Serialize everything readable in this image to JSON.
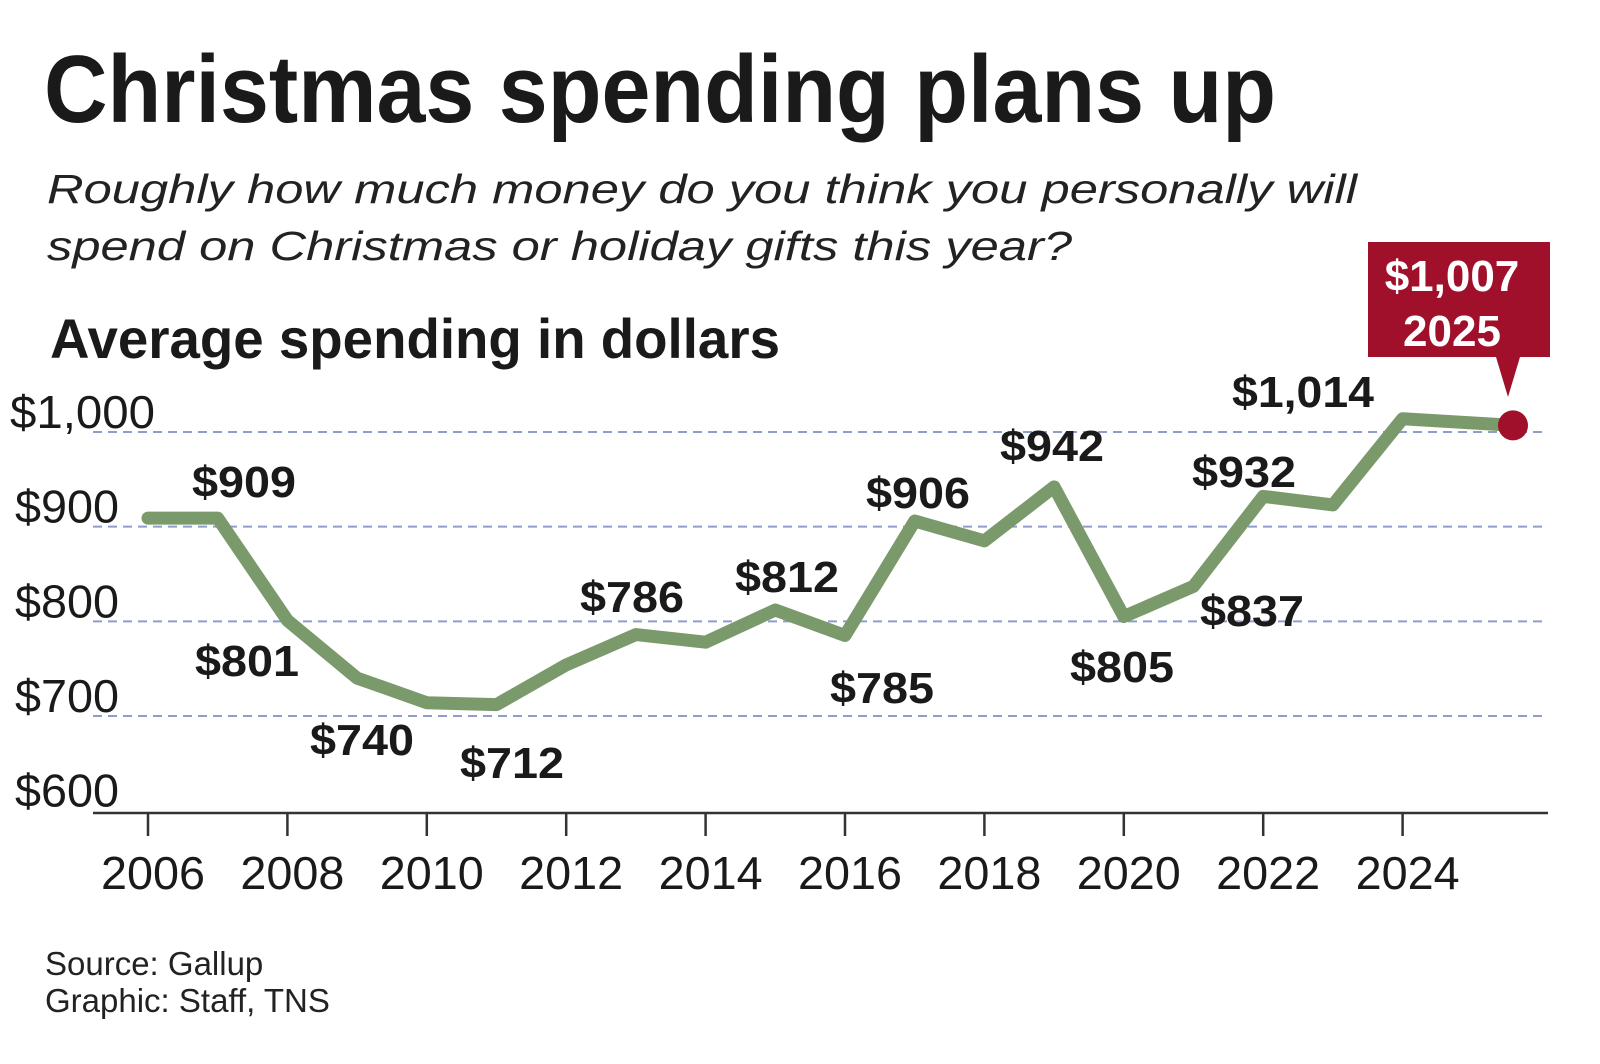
{
  "title": "Christmas spending plans up",
  "subtitle_line1": "Roughly how much money do you think you personally will",
  "subtitle_line2": "spend on Christmas or holiday gifts this year?",
  "source": "Source: Gallup",
  "credit": "Graphic: Staff, TNS",
  "colors": {
    "line": "#7b9a6c",
    "highlight": "#a0102a",
    "grid": "#8f9ccc"
  },
  "chart_data": {
    "type": "line",
    "title": "Average spending in dollars",
    "ylim": [
      600,
      1000
    ],
    "grid": true,
    "y_ticks": [
      {
        "value": 1000,
        "label": "$1,000"
      },
      {
        "value": 900,
        "label": "$900"
      },
      {
        "value": 800,
        "label": "$800"
      },
      {
        "value": 700,
        "label": "$700"
      },
      {
        "value": 600,
        "label": "$600"
      }
    ],
    "x_ticks": [
      2006,
      2008,
      2010,
      2012,
      2014,
      2016,
      2018,
      2020,
      2022,
      2024
    ],
    "x": [
      2006,
      2007,
      2008,
      2009,
      2010,
      2011,
      2012,
      2013,
      2014,
      2015,
      2016,
      2017,
      2018,
      2019,
      2020,
      2021,
      2022,
      2023,
      2024,
      2025
    ],
    "values": [
      909,
      909,
      801,
      740,
      714,
      712,
      754,
      786,
      778,
      812,
      785,
      906,
      885,
      942,
      805,
      837,
      932,
      923,
      1014,
      1007
    ],
    "labels": [
      {
        "year": 2007,
        "text": "$909"
      },
      {
        "year": 2008,
        "text": "$801"
      },
      {
        "year": 2009,
        "text": "$740"
      },
      {
        "year": 2011,
        "text": "$712"
      },
      {
        "year": 2013,
        "text": "$786"
      },
      {
        "year": 2015,
        "text": "$812"
      },
      {
        "year": 2016,
        "text": "$785"
      },
      {
        "year": 2017,
        "text": "$906"
      },
      {
        "year": 2019,
        "text": "$942"
      },
      {
        "year": 2020,
        "text": "$805"
      },
      {
        "year": 2021,
        "text": "$837"
      },
      {
        "year": 2022,
        "text": "$932"
      },
      {
        "year": 2024,
        "text": "$1,014"
      }
    ],
    "highlight": {
      "value": "$1,007",
      "year": "2025"
    }
  }
}
